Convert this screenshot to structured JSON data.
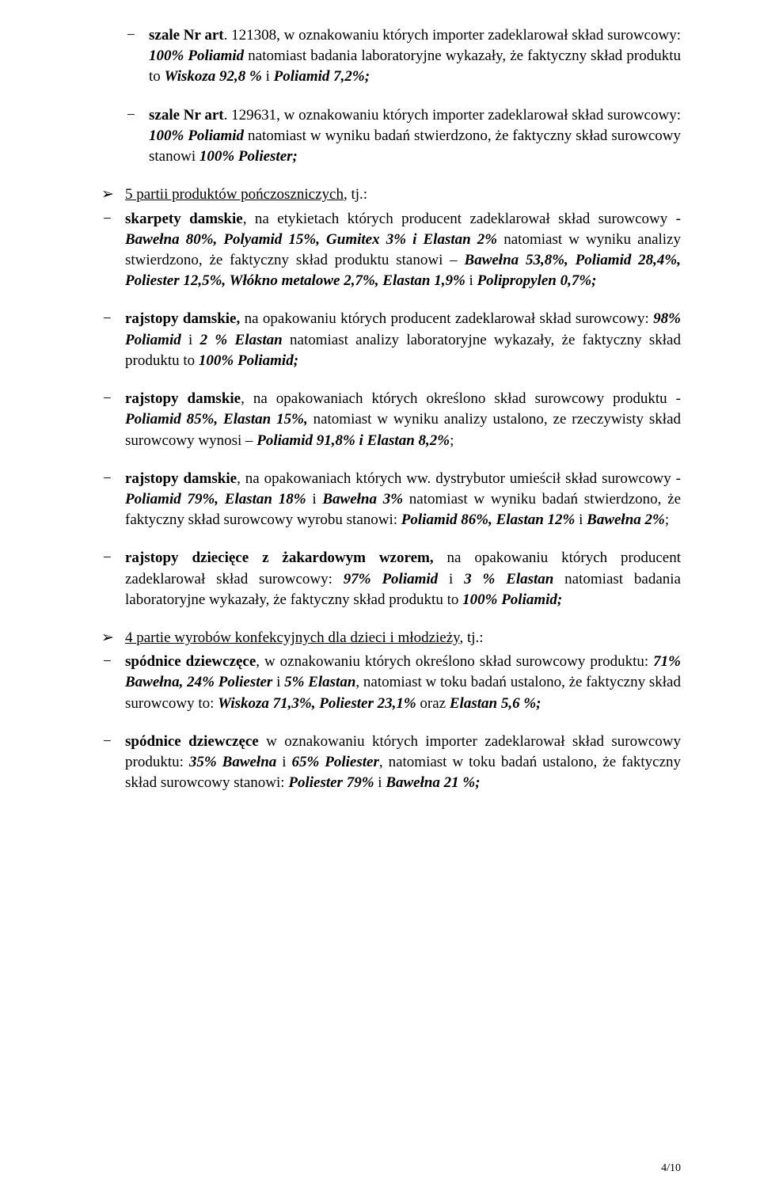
{
  "items_top": [
    {
      "prefix": "szale Nr art",
      "code": ". 121308, w oznakowaniu których importer ",
      "decl_intro": " zadeklarował skład surowcowy: ",
      "decl": "100% Poliamid",
      "lab": " natomiast badania laboratoryjne wykazały, że faktyczny skład produktu to ",
      "actual": " Wiskoza 92,8 % ",
      "mid": " i ",
      "actual2": "Poliamid 7,2%;"
    },
    {
      "prefix": "szale Nr art",
      "code": ". 129631, w oznakowaniu ",
      "decl_intro": " których importer zadeklarował skład surowcowy: ",
      "decl": "100% Poliamid",
      "lab": " natomiast w wyniku badań stwierdzono, że faktyczny skład surowcowy stanowi ",
      "actual": " 100% Poliester;"
    }
  ],
  "section1_title": "5 partii produktów pończoszniczych",
  "section1_suffix": ", tj.:",
  "ponczo": [
    {
      "name": "skarpety damskie",
      "t1": ", na etykietach których producent zadeklarował skład surowcowy - ",
      "decl": "Bawełna 80%, Polyamid 15%, Gumitex 3% i Elastan 2%",
      "t2": " natomiast w wyniku analizy stwierdzono, że faktyczny skład produktu stanowi – ",
      "actual": "Bawełna 53,8%, Poliamid 28,4%, Poliester 12,5%, Włókno metalowe 2,7%, Elastan 1,9%",
      "t3": " i ",
      "actual2": "Polipropylen 0,7%;"
    },
    {
      "name": "rajstopy damskie,",
      "t1": " na opakowaniu których producent zadeklarował skład surowcowy: ",
      "decl": "98% Poliamid",
      "t2": " i ",
      "decl2": "2 % Elastan",
      "t3": " natomiast analizy laboratoryjne wykazały, że faktyczny skład produktu to ",
      "actual": " 100% Poliamid;"
    },
    {
      "name": "rajstopy damskie",
      "t1": ", na opakowaniach których określono skład surowcowy produktu - ",
      "decl": "Poliamid 85%, Elastan 15%,",
      "t2": " natomiast w wyniku analizy ustalono, ze rzeczywisty skład surowcowy wynosi – ",
      "actual": "Poliamid 91,8% i Elastan 8,2%",
      "t3": ";"
    },
    {
      "name": "rajstopy damskie",
      "t1": ", na opakowaniach których ww. dystrybutor umieścił skład surowcowy - ",
      "decl": "Poliamid 79%, Elastan 18%",
      "t2": " i ",
      "decl2": "Bawełna 3%",
      "t3": " natomiast w wyniku badań stwierdzono, że faktyczny skład surowcowy wyrobu stanowi: ",
      "actual": "Poliamid 86%, Elastan 12%",
      "t4": " i ",
      "actual2": "Bawełna 2%",
      "t5": ";"
    },
    {
      "name": "rajstopy dziecięce z żakardowym wzorem,",
      "t1": " na opakowaniu których producent zadeklarował skład surowcowy: ",
      "decl": "97% Poliamid",
      "t2": " i ",
      "decl2": "3 % Elastan",
      "t3": " natomiast badania laboratoryjne wykazały, że faktyczny skład produktu to ",
      "actual": "100% Poliamid;"
    }
  ],
  "section2_title": "4  partie wyrobów konfekcyjnych dla dzieci i młodzieży",
  "section2_suffix": ", tj.:",
  "dzieci": [
    {
      "name": "spódnice dziewczęce",
      "t1": ", w oznakowaniu których określono skład surowcowy produktu: ",
      "decl": "71% Bawełna, 24% Poliester",
      "t2": " i ",
      "decl2": "5% Elastan",
      "t3": ", natomiast w  toku badań ustalono, że faktyczny skład surowcowy to: ",
      "actual": "Wiskoza 71,3%, Poliester 23,1%",
      "t4": "  oraz ",
      "actual2": "Elastan 5,6 %;"
    },
    {
      "name": "spódnice dziewczęce",
      "t1": " w oznakowaniu których importer zadeklarował skład surowcowy produktu: ",
      "decl": "35% Bawełna",
      "t2": " i ",
      "decl2": "65% Poliester",
      "t3": ", natomiast w   toku badań ustalono, że faktyczny skład surowcowy stanowi: ",
      "actual": "Poliester 79%",
      "t4": "  i  ",
      "actual2": "Bawełna 21 %;"
    }
  ],
  "pager": "4/10"
}
